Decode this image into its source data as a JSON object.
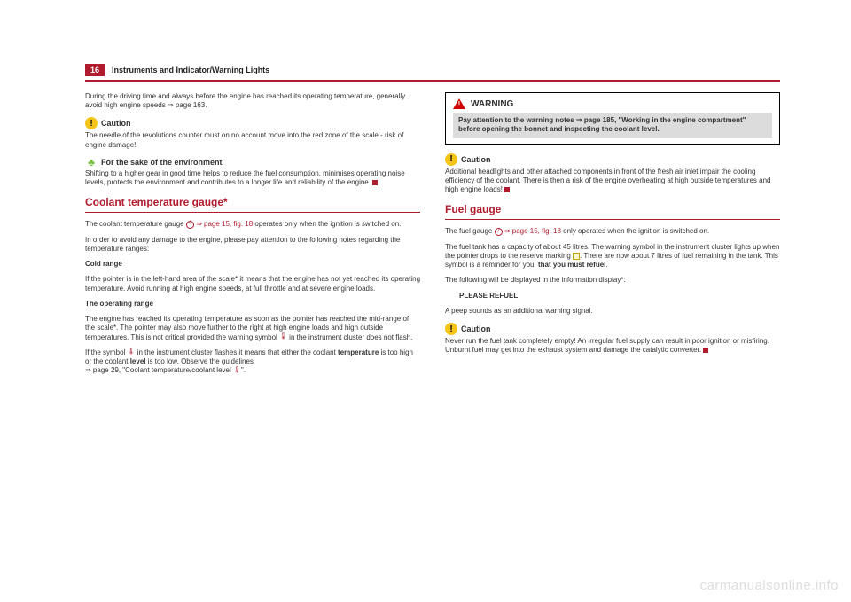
{
  "header": {
    "page_number": "16",
    "title": "Instruments and Indicator/Warning Lights"
  },
  "left": {
    "intro": "During the driving time and always before the engine has reached its operating temperature, generally avoid high engine speeds ⇒ page 163.",
    "caution_label": "Caution",
    "caution_text": "The needle of the revolutions counter must on no account move into the red zone of the scale - risk of engine damage!",
    "env_label": "For the sake of the environment",
    "env_text": "Shifting to a higher gear in good time helps to reduce the fuel consumption, minimises operating noise levels, protects the environment and contributes to a longer life and reliability of the engine.",
    "coolant_title": "Coolant temperature gauge*",
    "coolant_ref_num": "4",
    "coolant_ref_link": " ⇒ page 15, fig. 18",
    "coolant_p1a": "The coolant temperature gauge ",
    "coolant_p1b": " operates only when the ignition is switched on.",
    "coolant_p2": "In order to avoid any damage to the engine, please pay attention to the following notes regarding the temperature ranges:",
    "cold_label": "Cold range",
    "cold_text": "If the pointer is in the left-hand area of the scale* it means that the engine has not yet reached its operating temperature. Avoid running at high engine speeds, at full throttle and at severe engine loads.",
    "op_label": "The operating range",
    "op_text": "The engine has reached its operating temperature as soon as the pointer has reached the mid-range of the scale*. The pointer may also move further to the right at high engine loads and high outside temperatures. This is not critical provided the warning symbol  in the instrument cluster does not flash.",
    "symbol_p_a": "If the symbol ",
    "symbol_p_b": " in the instrument cluster flashes it means that either the coolant ",
    "symbol_bold1": "temperature",
    "symbol_mid": " is too high or the coolant ",
    "symbol_bold2": "level",
    "symbol_end": " is too low. Observe the guidelines",
    "symbol_line2a": "⇒ page 29, \"Coolant temperature/coolant level ",
    "symbol_line2b": "\"."
  },
  "right": {
    "warning_label": "WARNING",
    "warning_text": "Pay attention to the warning notes ⇒ page 185, \"Working in the engine compartment\" before opening the bonnet and inspecting the coolant level.",
    "caution_label": "Caution",
    "caution_text": "Additional headlights and other attached components in front of the fresh air inlet impair the cooling efficiency of the coolant. There is then a risk of the engine overheating at high outside temperatures and high engine loads!",
    "fuel_title": "Fuel gauge",
    "fuel_ref_num": "7",
    "fuel_ref_link": " ⇒ page 15, fig. 18",
    "fuel_p1a": "The fuel gauge ",
    "fuel_p1b": " only operates when the ignition is switched on.",
    "fuel_p2a": "The fuel tank has a capacity of about 45 litres. The warning symbol in the instrument cluster lights up when the pointer drops to the reserve marking ",
    "fuel_p2b": ". There are now about 7 litres of fuel remaining in the tank. This symbol is a reminder for you, ",
    "fuel_p2_bold": "that you must refuel",
    "fuel_p2c": ".",
    "fuel_p3": "The following will be displayed in the information display*:",
    "fuel_refuel": "PLEASE REFUEL",
    "fuel_p4": "A peep sounds as an additional warning signal.",
    "fuel_caution_label": "Caution",
    "fuel_caution_text": "Never run the fuel tank completely empty! An irregular fuel supply can result in poor ignition or misfiring. Unburnt fuel may get into the exhaust system and damage the catalytic converter."
  },
  "watermark": "carmanualsonline.info"
}
